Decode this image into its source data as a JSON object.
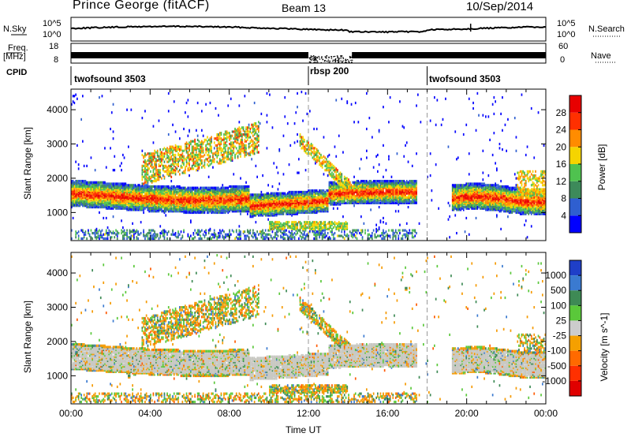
{
  "header": {
    "station": "Prince George (fitACF)",
    "beam": "Beam 13",
    "date": "10/Sep/2014"
  },
  "top_panels": {
    "nsky_label": "N.Sky",
    "nsearch_label": "N.Search",
    "nsky_ticks": [
      "10^5",
      "10^0"
    ],
    "nsearch_ticks": [
      "10^5",
      "10^0"
    ],
    "freq_label": "Freq.",
    "freq_unit": "[MHz]",
    "freq_ticks": [
      "18",
      "8"
    ],
    "nave_label": "Nave",
    "nave_ticks": [
      "60",
      "0"
    ],
    "cpid_label": "CPID",
    "cpid_segments": [
      {
        "name": "twofsound 3503",
        "start_hour": 0,
        "end_hour": 12
      },
      {
        "name": "rbsp 200",
        "start_hour": 12,
        "end_hour": 18
      },
      {
        "name": "twofsound 3503",
        "start_hour": 18,
        "end_hour": 24
      }
    ]
  },
  "chart_data": [
    {
      "type": "heatmap",
      "name": "power",
      "xlabel": "Time UT",
      "ylabel": "Slant Range [km]",
      "x_ticks": [
        "00:00",
        "04:00",
        "08:00",
        "12:00",
        "16:00",
        "20:00",
        "00:00"
      ],
      "y_ticks": [
        1000,
        2000,
        3000,
        4000
      ],
      "xlim": [
        0,
        24
      ],
      "ylim": [
        180,
        4600
      ],
      "colorbar": {
        "label": "Power [dB]",
        "ticks": [
          4,
          8,
          12,
          16,
          20,
          24,
          28
        ],
        "range": [
          0,
          30
        ],
        "colors": [
          "#0000ff",
          "#2f5fd0",
          "#3d8a5a",
          "#4fc24f",
          "#f5d400",
          "#ff8c00",
          "#ff3000",
          "#e80000"
        ]
      },
      "features": [
        {
          "desc": "main echo band",
          "start_hour": 0,
          "end_hour": 17.5,
          "range_center_km": 1350,
          "range_halfwidth_km": 400
        },
        {
          "desc": "high range echoes",
          "start_hour": 4,
          "end_hour": 9.5,
          "range_center_km": 2600,
          "range_halfwidth_km": 600
        },
        {
          "desc": "evening echoes",
          "start_hour": 19.5,
          "end_hour": 24,
          "range_center_km": 1300,
          "range_halfwidth_km": 350
        }
      ]
    },
    {
      "type": "heatmap",
      "name": "velocity",
      "xlabel": "Time UT",
      "ylabel": "Slant Range [km]",
      "x_ticks": [
        "00:00",
        "04:00",
        "08:00",
        "12:00",
        "16:00",
        "20:00",
        "00:00"
      ],
      "y_ticks": [
        1000,
        2000,
        3000,
        4000
      ],
      "xlim": [
        0,
        24
      ],
      "ylim": [
        180,
        4600
      ],
      "colorbar": {
        "label": "Velocity [m s^-1]",
        "ticks": [
          "1000",
          "500",
          "100",
          "25",
          "-25",
          "-100",
          "-500",
          "-1000"
        ],
        "colors": [
          "#1f3fc8",
          "#3a7ad0",
          "#3e8a55",
          "#5ac83a",
          "#cccccc",
          "#f5a000",
          "#ff6a00",
          "#ff3000",
          "#e00000"
        ]
      }
    }
  ]
}
